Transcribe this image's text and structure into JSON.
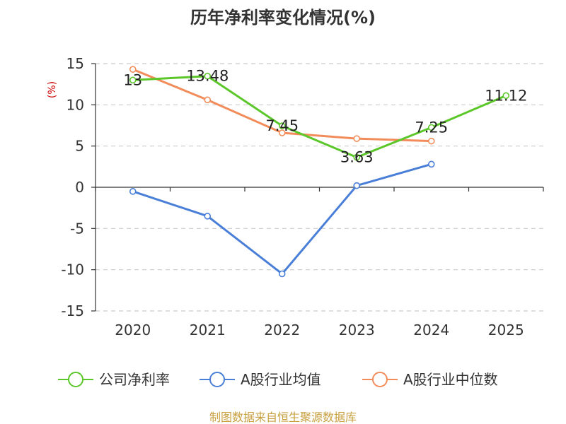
{
  "chart_data": {
    "type": "line",
    "title": "历年净利率变化情况(%)",
    "ylabel": "(%)",
    "xlabel": "",
    "categories": [
      "2020",
      "2021",
      "2022",
      "2023",
      "2024",
      "2025"
    ],
    "ylim": [
      -15,
      15
    ],
    "yticks": [
      15,
      10,
      5,
      0,
      -5,
      -10,
      -15
    ],
    "grid": true,
    "legend_position": "bottom",
    "series": [
      {
        "name": "公司净利率",
        "color": "#5cc72a",
        "values": [
          13,
          13.48,
          7.45,
          3.63,
          7.25,
          11.12
        ],
        "labels": [
          "13",
          "13.48",
          "7.45",
          "3.63",
          "7.25",
          "11.12"
        ]
      },
      {
        "name": "A股行业均值",
        "color": "#4a7fd8",
        "values": [
          -0.5,
          -3.5,
          -10.5,
          0.2,
          2.8,
          null
        ],
        "labels": []
      },
      {
        "name": "A股行业中位数",
        "color": "#f28d5b",
        "values": [
          14.3,
          10.6,
          6.6,
          5.9,
          5.6,
          null
        ],
        "labels": []
      }
    ]
  },
  "source_text": "制图数据来自恒生聚源数据库",
  "colors": {
    "axis": "#333333",
    "grid": "#cccccc",
    "ylabel": "#cc0000",
    "source": "#c8a040"
  }
}
